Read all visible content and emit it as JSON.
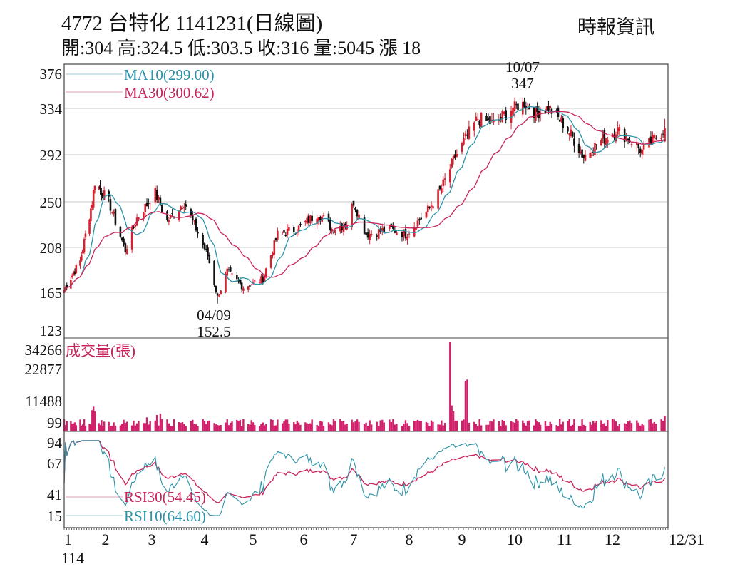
{
  "header": {
    "title": "4772  台特化 1141231(日線圖)",
    "quote": "開:304 高:324.5 低:303.5 收:316 量:5045 漲 18",
    "source": "時報資訊"
  },
  "colors": {
    "up": "#d42030",
    "down": "#111111",
    "ma10": "#2b93a8",
    "ma30": "#c8245a",
    "volume": "#d0206a",
    "rsi30": "#c8245a",
    "rsi10": "#2b93a8",
    "grid": "#c8c8c8"
  },
  "chart_data": [
    {
      "type": "candlestick",
      "title": "4772  台特化 1141231(日線圖)",
      "yscale": "log-like",
      "yticks": [
        "376",
        "334",
        "292",
        "250",
        "208",
        "165",
        "123"
      ],
      "ylim": [
        123,
        376
      ],
      "grid": true,
      "legend": [
        {
          "name": "MA10(299.00)",
          "color": "#2b93a8"
        },
        {
          "name": "MA30(300.62)",
          "color": "#c8245a"
        }
      ],
      "legend_placement": "top-left",
      "annotations": [
        {
          "date": "10/07",
          "value": "347",
          "label_date": "10/07",
          "label_value": "347"
        },
        {
          "date": "04/09",
          "value": "152.5",
          "label_date": "04/09",
          "label_value": "152.5"
        }
      ],
      "close_keypoints": [
        [
          "01/02",
          170
        ],
        [
          "01/13",
          195
        ],
        [
          "01/22",
          250
        ],
        [
          "01/24",
          268
        ],
        [
          "02/03",
          250
        ],
        [
          "02/13",
          205
        ],
        [
          "02/20",
          235
        ],
        [
          "03/03",
          258
        ],
        [
          "03/10",
          232
        ],
        [
          "03/20",
          250
        ],
        [
          "03/27",
          225
        ],
        [
          "04/03",
          200
        ],
        [
          "04/09",
          160
        ],
        [
          "04/15",
          185
        ],
        [
          "04/25",
          170
        ],
        [
          "05/07",
          178
        ],
        [
          "05/16",
          220
        ],
        [
          "05/28",
          225
        ],
        [
          "06/10",
          240
        ],
        [
          "06/18",
          225
        ],
        [
          "06/27",
          230
        ],
        [
          "07/01",
          250
        ],
        [
          "07/08",
          220
        ],
        [
          "07/21",
          225
        ],
        [
          "07/30",
          220
        ],
        [
          "08/11",
          240
        ],
        [
          "08/20",
          262
        ],
        [
          "08/28",
          290
        ],
        [
          "09/10",
          325
        ],
        [
          "09/19",
          320
        ],
        [
          "09/30",
          335
        ],
        [
          "10/07",
          340
        ],
        [
          "10/14",
          330
        ],
        [
          "10/22",
          335
        ],
        [
          "11/03",
          315
        ],
        [
          "11/13",
          290
        ],
        [
          "11/20",
          300
        ],
        [
          "12/03",
          315
        ],
        [
          "12/12",
          305
        ],
        [
          "12/18",
          295
        ],
        [
          "12/31",
          316
        ]
      ],
      "last": {
        "open": 304,
        "high": 324.5,
        "low": 303.5,
        "close": 316,
        "volume": 5045,
        "change": 18
      }
    },
    {
      "type": "bar",
      "title": "成交量(張)",
      "yticks": [
        "34266",
        "22877",
        "11488",
        "99"
      ],
      "ylim": [
        0,
        34266
      ],
      "volume_spikes": [
        [
          "01/22",
          7500
        ],
        [
          "01/23",
          9000
        ],
        [
          "01/24",
          7000
        ],
        [
          "02/26",
          4500
        ],
        [
          "03/04",
          5500
        ],
        [
          "03/06",
          6000
        ],
        [
          "08/25",
          34266
        ],
        [
          "08/26",
          9500
        ],
        [
          "08/27",
          7000
        ],
        [
          "09/03",
          18500
        ],
        [
          "09/04",
          19000
        ],
        [
          "12/31",
          5045
        ]
      ]
    },
    {
      "type": "line",
      "yticks": [
        "94",
        "67",
        "41",
        "15"
      ],
      "ylim": [
        15,
        94
      ],
      "legend": [
        {
          "name": "RSI30(54.45)",
          "color": "#c8245a"
        },
        {
          "name": "RSI10(64.60)",
          "color": "#2b93a8"
        }
      ],
      "xticks": [
        "1",
        "2",
        "3",
        "4",
        "5",
        "6",
        "7",
        "8",
        "9",
        "10",
        "11",
        "12",
        "12/31"
      ],
      "xyear": "114"
    }
  ]
}
